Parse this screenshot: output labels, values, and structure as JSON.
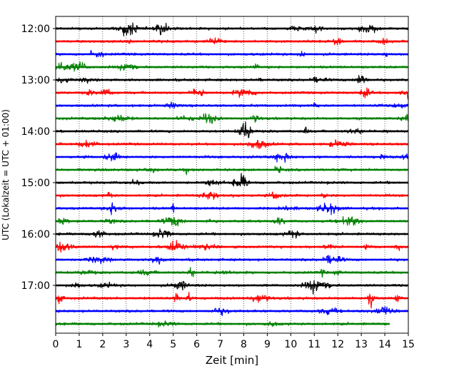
{
  "chart_data": {
    "type": "line",
    "title": "",
    "xlabel": "Zeit  [min]",
    "ylabel": "UTC (Lokalzeit = UTC + 01:00)",
    "xlim": [
      0,
      15
    ],
    "x_ticks": [
      "0",
      "1",
      "2",
      "3",
      "4",
      "5",
      "6",
      "7",
      "8",
      "9",
      "10",
      "11",
      "12",
      "13",
      "14",
      "15"
    ],
    "y_tick_labels": [
      "12:00",
      "13:00",
      "14:00",
      "15:00",
      "16:00",
      "17:00"
    ],
    "grid": "vertical dotted",
    "trace_colors": [
      "#000000",
      "#ff0000",
      "#0000ff",
      "#008000"
    ],
    "traces": [
      {
        "start": "12:00",
        "end_min": 15
      },
      {
        "start": "12:15",
        "end_min": 15
      },
      {
        "start": "12:30",
        "end_min": 15
      },
      {
        "start": "12:45",
        "end_min": 15
      },
      {
        "start": "13:00",
        "end_min": 15
      },
      {
        "start": "13:15",
        "end_min": 15
      },
      {
        "start": "13:30",
        "end_min": 15
      },
      {
        "start": "13:45",
        "end_min": 15
      },
      {
        "start": "14:00",
        "end_min": 15
      },
      {
        "start": "14:15",
        "end_min": 15
      },
      {
        "start": "14:30",
        "end_min": 15
      },
      {
        "start": "14:45",
        "end_min": 15
      },
      {
        "start": "15:00",
        "end_min": 15
      },
      {
        "start": "15:15",
        "end_min": 15
      },
      {
        "start": "15:30",
        "end_min": 15
      },
      {
        "start": "15:45",
        "end_min": 15
      },
      {
        "start": "16:00",
        "end_min": 15
      },
      {
        "start": "16:15",
        "end_min": 15
      },
      {
        "start": "16:30",
        "end_min": 15
      },
      {
        "start": "16:45",
        "end_min": 15
      },
      {
        "start": "17:00",
        "end_min": 15
      },
      {
        "start": "17:15",
        "end_min": 15
      },
      {
        "start": "17:30",
        "end_min": 15
      },
      {
        "start": "17:45",
        "end_min": 14.2
      }
    ]
  }
}
